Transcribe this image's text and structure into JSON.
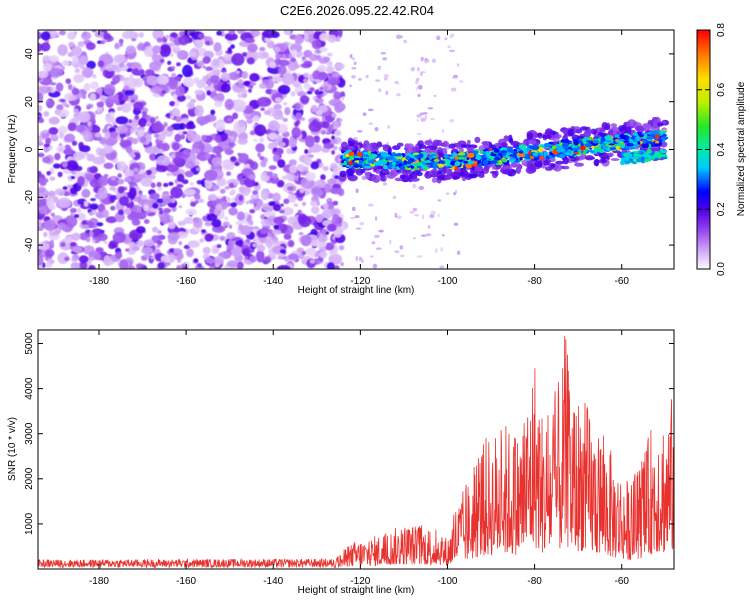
{
  "title": "C2E6.2026.095.22.42.R04",
  "chart_data": [
    {
      "type": "heatmap",
      "xlabel": "Height of straight line (km)",
      "ylabel": "Frequency (Hz)",
      "xlim": [
        -194,
        -48
      ],
      "ylim": [
        -50,
        50
      ],
      "xticks": [
        -180,
        -160,
        -140,
        -120,
        -100,
        -80,
        -60
      ],
      "yticks": [
        -40,
        -20,
        0,
        20,
        40
      ],
      "colorbar": {
        "label": "Normalized spectral amplitude",
        "range": [
          0,
          0.8
        ],
        "ticks": [
          0.0,
          0.2,
          0.4,
          0.6,
          0.8
        ]
      },
      "features": [
        {
          "name": "broadband noise",
          "x_range": [
            -194,
            -124
          ],
          "freq_range": [
            -50,
            50
          ],
          "amplitude": 0.1
        },
        {
          "name": "echo trace",
          "x_points": [
            -124,
            -110,
            -100,
            -90,
            -80,
            -70,
            -60,
            -50
          ],
          "freq_points": [
            -4,
            -5,
            -5,
            -3,
            -1,
            1,
            3,
            5
          ],
          "peak_amplitude": 0.8
        }
      ]
    },
    {
      "type": "line",
      "xlabel": "Height of straight line (km)",
      "ylabel": "SNR (10 * v/v)",
      "xlim": [
        -194,
        -48
      ],
      "ylim": [
        0,
        5300
      ],
      "xticks": [
        -180,
        -160,
        -140,
        -120,
        -100,
        -80,
        -60
      ],
      "yticks": [
        1000,
        2000,
        3000,
        4000,
        5000
      ],
      "color": "#e8322f",
      "envelope": {
        "x": [
          -194,
          -126,
          -124,
          -121,
          -118,
          -114,
          -110,
          -106,
          -102,
          -100,
          -98,
          -95,
          -92,
          -90,
          -87,
          -84,
          -82,
          -80,
          -78,
          -76,
          -74,
          -73,
          -71,
          -69,
          -67,
          -64,
          -62,
          -60,
          -58,
          -56,
          -54,
          -52,
          -51,
          -50,
          -48
        ],
        "y": [
          200,
          220,
          420,
          650,
          700,
          850,
          1000,
          1000,
          900,
          700,
          1500,
          2000,
          2900,
          3000,
          3300,
          3100,
          3700,
          4900,
          3400,
          3800,
          4300,
          5300,
          3800,
          4000,
          3400,
          3100,
          2500,
          2200,
          1900,
          2300,
          2900,
          3700,
          3700,
          3500,
          4000
        ]
      }
    }
  ]
}
